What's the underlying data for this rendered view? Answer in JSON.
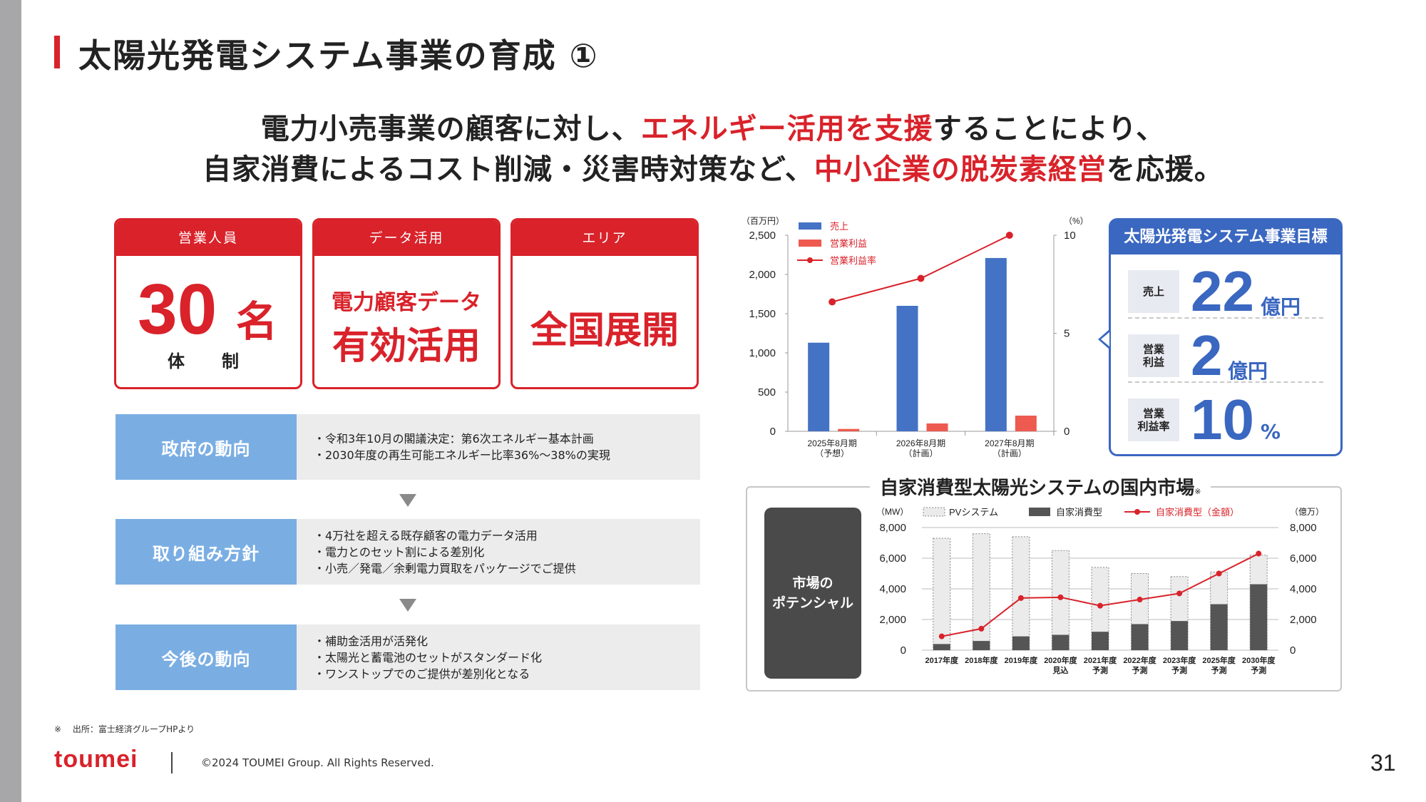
{
  "title": "太陽光発電システム事業の育成 ①",
  "lead": {
    "line1": {
      "a": "電力小売事業の顧客に対し、",
      "red": "エネルギー活用を支援",
      "b": "することにより、"
    },
    "line2": {
      "a": "自家消費によるコスト削減・災害時対策など、",
      "red": "中小企業の脱炭素経営",
      "b": "を応援。"
    }
  },
  "cards": {
    "sales": {
      "head": "営業人員",
      "number": "30",
      "unit": "名",
      "sub": "体　制"
    },
    "data": {
      "head": "データ活用",
      "line1": "電力顧客データ",
      "line2": "有効活用"
    },
    "area": {
      "head": "エリア",
      "line1": "全国展開"
    }
  },
  "flow": [
    {
      "label": "政府の動向",
      "items": [
        "・令和3年10月の閣議決定：第6次エネルギー基本計画",
        "・2030年度の再生可能エネルギー比率36%～38%の実現"
      ]
    },
    {
      "label": "取り組み方針",
      "items": [
        "・4万社を超える既存顧客の電力データ活用",
        "・電力とのセット割による差別化",
        "・小売／発電／余剰電力買取をパッケージでご提供"
      ]
    },
    {
      "label": "今後の動向",
      "items": [
        "・補助金活用が活発化",
        "・太陽光と蓄電池のセットがスタンダード化",
        "・ワンストップでのご提供が差別化となる"
      ]
    }
  ],
  "goal": {
    "head": "太陽光発電システム事業目標",
    "rows": [
      {
        "tag": "売上",
        "value": "22",
        "unit": "億円"
      },
      {
        "tag": "営業\n利益",
        "value": "2",
        "unit": "億円"
      },
      {
        "tag": "営業\n利益率",
        "value": "10",
        "unit": "%"
      }
    ]
  },
  "market": {
    "title": "自家消費型太陽光システムの国内市場",
    "title_mark": "※",
    "potential": "市場の\nポテンシャル"
  },
  "footnote": "※　 出所：富士経済グループHPより",
  "logo": "toumei",
  "copyright": "©2024 TOUMEI Group. All Rights Reserved.",
  "page_number": "31",
  "colors": {
    "red": "#d9222a",
    "blue": "#3a67c0",
    "bar_blue": "#4472c4",
    "bar_red": "#ee5a4f",
    "light_blue": "#7aaee3"
  },
  "chart_data": [
    {
      "type": "bar",
      "title": "",
      "ylabel": "（百万円）",
      "y2label": "（%）",
      "categories": [
        [
          "2025年8月期",
          "（予想）"
        ],
        [
          "2026年8月期",
          "（計画）"
        ],
        [
          "2027年8月期",
          "（計画）"
        ]
      ],
      "series": [
        {
          "name": "売上",
          "kind": "bar",
          "axis": "left",
          "values": [
            1130,
            1600,
            2210
          ]
        },
        {
          "name": "営業利益",
          "kind": "bar",
          "axis": "left",
          "values": [
            30,
            100,
            200
          ]
        },
        {
          "name": "営業利益率",
          "kind": "line",
          "axis": "right",
          "values": [
            6.6,
            7.8,
            10
          ]
        }
      ],
      "ylim": [
        0,
        2500
      ],
      "yticks": [
        0,
        500,
        1000,
        1500,
        2000,
        2500
      ],
      "ytick_labels": [
        "0",
        "500",
        "1,000",
        "1,500",
        "2,000",
        "2,500"
      ],
      "y2lim": [
        0,
        10
      ],
      "y2ticks": [
        0,
        5,
        10
      ],
      "legend": "top-left"
    },
    {
      "type": "bar",
      "title": "自家消費型太陽光システムの国内市場",
      "ylabel": "（MW）",
      "y2label": "（億万）",
      "categories": [
        [
          "2017年度"
        ],
        [
          "2018年度"
        ],
        [
          "2019年度"
        ],
        [
          "2020年度",
          "見込"
        ],
        [
          "2021年度",
          "予測"
        ],
        [
          "2022年度",
          "予測"
        ],
        [
          "2023年度",
          "予測"
        ],
        [
          "2025年度",
          "予測"
        ],
        [
          "2030年度",
          "予測"
        ]
      ],
      "series": [
        {
          "name": "PVシステム",
          "kind": "bar",
          "axis": "left",
          "values": [
            7300,
            7600,
            7400,
            6500,
            5400,
            5000,
            4800,
            5100,
            6200
          ]
        },
        {
          "name": "自家消費型",
          "kind": "bar",
          "axis": "left",
          "values": [
            400,
            600,
            900,
            1000,
            1200,
            1700,
            1900,
            3000,
            4300
          ]
        },
        {
          "name": "自家消費型（金額）",
          "kind": "line",
          "axis": "right",
          "values": [
            900,
            1400,
            3400,
            3450,
            2900,
            3300,
            3700,
            5000,
            6300
          ]
        }
      ],
      "ylim": [
        0,
        8000
      ],
      "yticks": [
        0,
        2000,
        4000,
        6000,
        8000
      ],
      "ytick_labels": [
        "0",
        "2,000",
        "4,000",
        "6,000",
        "8,000"
      ],
      "y2lim": [
        0,
        8000
      ],
      "y2ticks": [
        0,
        2000,
        4000,
        6000,
        8000
      ],
      "y2tick_labels": [
        "0",
        "2,000",
        "4,000",
        "6,000",
        "8,000"
      ],
      "legend": "top"
    }
  ]
}
